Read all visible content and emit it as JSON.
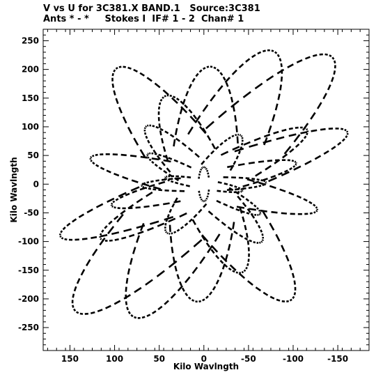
{
  "chart_data": {
    "type": "scatter",
    "title_line1": "V vs U for 3C381.X BAND.1   Source:3C381",
    "title_line2": "Ants * - *     Stokes I  IF# 1 - 2  Chan# 1",
    "xlabel": "Kilo Wavlngth",
    "ylabel": "Kilo Wavlngth",
    "xlim": [
      180,
      -185
    ],
    "ylim": [
      -290,
      270
    ],
    "xticks": [
      150,
      100,
      50,
      0,
      -50,
      -100,
      -150
    ],
    "yticks": [
      250,
      200,
      150,
      100,
      50,
      0,
      -50,
      -100,
      -150,
      -200,
      -250
    ],
    "grid": false,
    "marker": "short dashes",
    "baseline_tracks": [
      {
        "a": 82,
        "b": 14,
        "phi": 40,
        "segments": 20
      },
      {
        "a": 120,
        "b": 22,
        "phi": 58,
        "segments": 22
      },
      {
        "a": 160,
        "b": 30,
        "phi": 75,
        "segments": 24
      },
      {
        "a": 205,
        "b": 38,
        "phi": 92,
        "segments": 24
      },
      {
        "a": 245,
        "b": 46,
        "phi": 108,
        "segments": 26
      },
      {
        "a": 265,
        "b": 52,
        "phi": 122,
        "segments": 26
      },
      {
        "a": 150,
        "b": 28,
        "phi": 140,
        "segments": 22
      },
      {
        "a": 110,
        "b": 20,
        "phi": 160,
        "segments": 20
      },
      {
        "a": 70,
        "b": 12,
        "phi": 178,
        "segments": 18
      },
      {
        "a": 45,
        "b": 8,
        "phi": 15,
        "segments": 14
      },
      {
        "a": 185,
        "b": 34,
        "phi": 150,
        "segments": 24
      },
      {
        "a": 225,
        "b": 42,
        "phi": 65,
        "segments": 24
      },
      {
        "a": 95,
        "b": 18,
        "phi": 115,
        "segments": 20
      },
      {
        "a": 135,
        "b": 26,
        "phi": 20,
        "segments": 22
      },
      {
        "a": 30,
        "b": 6,
        "phi": 90,
        "segments": 12
      }
    ]
  }
}
